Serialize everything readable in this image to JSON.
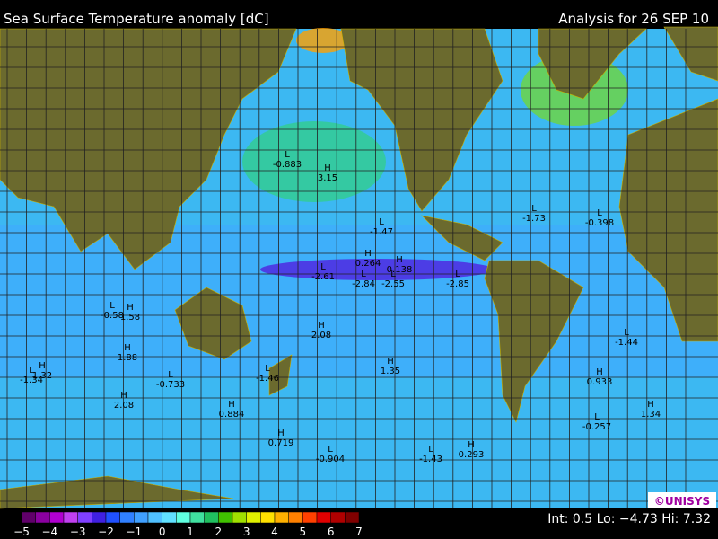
{
  "header": {
    "title": "Sea Surface Temperature anomaly [dC]",
    "date": "Analysis for 26 SEP 10"
  },
  "map": {
    "markers": [
      {
        "kind": "L",
        "value": "-0.883"
      },
      {
        "kind": "H",
        "value": "3.15"
      },
      {
        "kind": "L",
        "value": "-1.47"
      },
      {
        "kind": "L",
        "value": "-1.73"
      },
      {
        "kind": "L",
        "value": "-0.398"
      },
      {
        "kind": "H",
        "value": "0.264"
      },
      {
        "kind": "L",
        "value": "-2.61"
      },
      {
        "kind": "H",
        "value": "0.138"
      },
      {
        "kind": "L",
        "value": "-2.84"
      },
      {
        "kind": "L",
        "value": "-2.55"
      },
      {
        "kind": "L",
        "value": "-2.85"
      },
      {
        "kind": "L",
        "value": "-0.58"
      },
      {
        "kind": "H",
        "value": "1.58"
      },
      {
        "kind": "H",
        "value": "2.08"
      },
      {
        "kind": "L",
        "value": "-1.44"
      },
      {
        "kind": "H",
        "value": "1.88"
      },
      {
        "kind": "H",
        "value": "1.35"
      },
      {
        "kind": "L",
        "value": "-1.34"
      },
      {
        "kind": "H",
        "value": "1.32"
      },
      {
        "kind": "L",
        "value": "-0.733"
      },
      {
        "kind": "L",
        "value": "-1.46"
      },
      {
        "kind": "H",
        "value": "0.933"
      },
      {
        "kind": "H",
        "value": "2.08"
      },
      {
        "kind": "H",
        "value": "0.884"
      },
      {
        "kind": "L",
        "value": "-0.257"
      },
      {
        "kind": "H",
        "value": "1.34"
      },
      {
        "kind": "H",
        "value": "0.719"
      },
      {
        "kind": "L",
        "value": "-0.904"
      },
      {
        "kind": "L",
        "value": "-1.43"
      },
      {
        "kind": "H",
        "value": "0.293"
      }
    ],
    "logo": "©UNISYS"
  },
  "colorbar": {
    "labels": [
      "−5",
      "−4",
      "−3",
      "−2",
      "−1",
      "0",
      "1",
      "2",
      "3",
      "4",
      "5",
      "6",
      "7"
    ],
    "colors": [
      "#60006a",
      "#8a00a0",
      "#b000d0",
      "#c040f0",
      "#8040ff",
      "#4020e0",
      "#2050ff",
      "#3080ff",
      "#40a0ff",
      "#50c0ff",
      "#60e0ff",
      "#60ffe0",
      "#40e0a0",
      "#20c060",
      "#40c000",
      "#a0e000",
      "#e0f000",
      "#ffe000",
      "#ffb000",
      "#ff8000",
      "#ff4000",
      "#e00000",
      "#b00000",
      "#800000"
    ],
    "footer": "Int: 0.5 Lo: −4.73 Hi: 7.32"
  }
}
